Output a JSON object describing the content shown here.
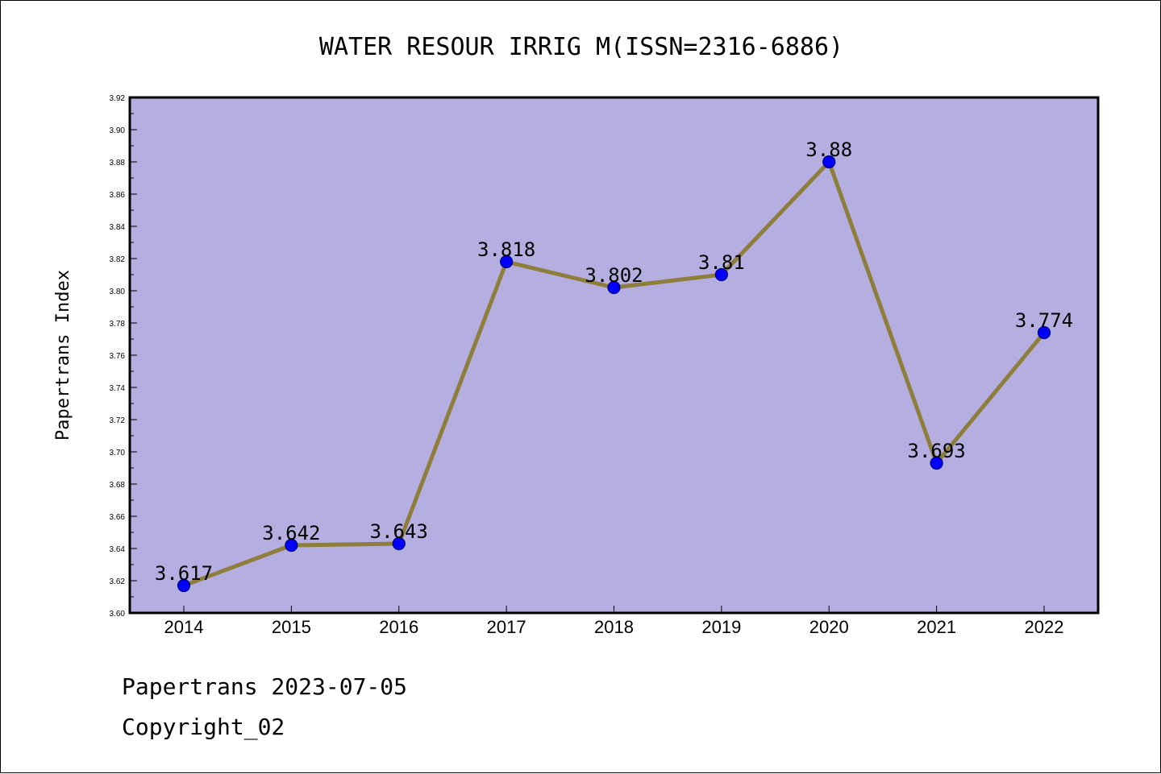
{
  "chart_data": {
    "type": "line",
    "title": "WATER RESOUR IRRIG M(ISSN=2316-6886)",
    "xlabel": "",
    "ylabel": "Papertrans Index",
    "categories": [
      "2014",
      "2015",
      "2016",
      "2017",
      "2018",
      "2019",
      "2020",
      "2021",
      "2022"
    ],
    "series": [
      {
        "values": [
          3.617,
          3.642,
          3.643,
          3.818,
          3.802,
          3.81,
          3.88,
          3.693,
          3.774
        ],
        "data_labels": [
          "3.617",
          "3.642",
          "3.643",
          "3.818",
          "3.802",
          "3.81",
          "3.88",
          "3.693",
          "3.774"
        ]
      }
    ],
    "ylim": [
      3.6,
      3.92
    ],
    "yticks": [
      "3.60",
      "3.62",
      "3.64",
      "3.66",
      "3.68",
      "3.70",
      "3.72",
      "3.74",
      "3.76",
      "3.78",
      "3.80",
      "3.82",
      "3.84",
      "3.86",
      "3.88",
      "3.90",
      "3.92"
    ],
    "grid": false,
    "colors": {
      "plot_background": "#b5afe1",
      "line": "#8f7d3c",
      "marker": "#0000ff",
      "marker_edge": "#00007a"
    }
  },
  "footer": {
    "line1": "Papertrans 2023-07-05",
    "line2": "Copyright_02"
  }
}
